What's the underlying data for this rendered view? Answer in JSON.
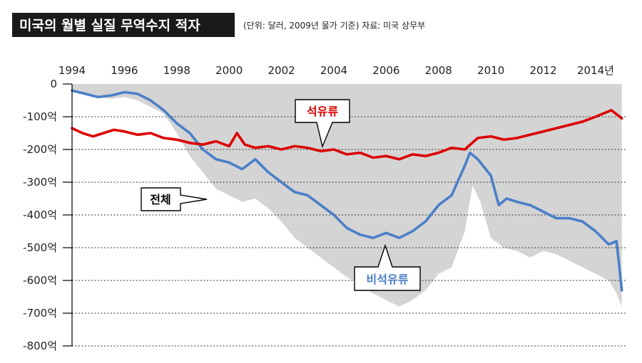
{
  "header": {
    "title": "미국의 월별 실질 무역수지 적자",
    "subtitle": "(단위: 달러, 2009년 물가 기준) 자료: 미국 상무부"
  },
  "chart_data": {
    "type": "line",
    "xlim": [
      1994,
      2015.2
    ],
    "ylim": [
      -800,
      0
    ],
    "x_ticks": [
      1994,
      1996,
      1998,
      2000,
      2002,
      2004,
      2006,
      2008,
      2010,
      2012,
      2014
    ],
    "x_tick_labels": [
      "1994",
      "1996",
      "1998",
      "2000",
      "2002",
      "2004",
      "2006",
      "2008",
      "2010",
      "2012",
      "2014년"
    ],
    "y_ticks": [
      0,
      -100,
      -200,
      -300,
      -400,
      -500,
      -600,
      -700,
      -800
    ],
    "y_tick_labels": [
      "0",
      "-100억",
      "-200억",
      "-300억",
      "-400억",
      "-500억",
      "-600억",
      "-700억",
      "-800억"
    ],
    "grid": "horizontal dashed",
    "series": [
      {
        "name": "전체",
        "style": "area",
        "color": "#d4d4d4",
        "x": [
          1994,
          1994.5,
          1995,
          1995.5,
          1996,
          1996.5,
          1997,
          1997.5,
          1998,
          1998.5,
          1999,
          1999.5,
          2000,
          2000.5,
          2001,
          2001.5,
          2002,
          2002.5,
          2003,
          2003.5,
          2004,
          2004.5,
          2005,
          2005.5,
          2006,
          2006.5,
          2007,
          2007.5,
          2008,
          2008.5,
          2009,
          2009.3,
          2009.6,
          2010,
          2010.5,
          2011,
          2011.5,
          2012,
          2012.5,
          2013,
          2013.5,
          2014,
          2014.5,
          2014.8,
          2015
        ],
        "values": [
          -20,
          -30,
          -40,
          -45,
          -40,
          -50,
          -70,
          -90,
          -150,
          -220,
          -270,
          -320,
          -340,
          -360,
          -350,
          -380,
          -420,
          -470,
          -500,
          -530,
          -560,
          -590,
          -610,
          -640,
          -660,
          -680,
          -660,
          -630,
          -580,
          -560,
          -450,
          -310,
          -360,
          -470,
          -500,
          -510,
          -530,
          -510,
          -520,
          -540,
          -560,
          -580,
          -600,
          -640,
          -680
        ]
      },
      {
        "name": "석유류",
        "color": "#dc0000",
        "x": [
          1994,
          1994.4,
          1994.8,
          1995.2,
          1995.6,
          1996,
          1996.5,
          1997,
          1997.5,
          1998,
          1998.5,
          1999,
          1999.5,
          2000,
          2000.3,
          2000.6,
          2001,
          2001.5,
          2002,
          2002.5,
          2003,
          2003.5,
          2004,
          2004.5,
          2005,
          2005.5,
          2006,
          2006.5,
          2007,
          2007.5,
          2008,
          2008.5,
          2009,
          2009.5,
          2010,
          2010.5,
          2011,
          2011.5,
          2012,
          2012.5,
          2013,
          2013.5,
          2014,
          2014.3,
          2014.6,
          2015
        ],
        "values": [
          -135,
          -150,
          -160,
          -150,
          -140,
          -145,
          -155,
          -150,
          -165,
          -170,
          -180,
          -185,
          -175,
          -190,
          -150,
          -185,
          -195,
          -190,
          -200,
          -190,
          -195,
          -205,
          -200,
          -215,
          -210,
          -225,
          -220,
          -230,
          -215,
          -220,
          -210,
          -195,
          -200,
          -165,
          -160,
          -170,
          -165,
          -155,
          -145,
          -135,
          -125,
          -115,
          -100,
          -90,
          -80,
          -105
        ]
      },
      {
        "name": "비석유류",
        "color": "#4a7fc8",
        "x": [
          1994,
          1994.5,
          1995,
          1995.5,
          1996,
          1996.5,
          1997,
          1997.5,
          1998,
          1998.5,
          1999,
          1999.5,
          2000,
          2000.5,
          2001,
          2001.5,
          2002,
          2002.5,
          2003,
          2003.5,
          2004,
          2004.5,
          2005,
          2005.5,
          2006,
          2006.5,
          2007,
          2007.5,
          2008,
          2008.5,
          2009,
          2009.2,
          2009.5,
          2010,
          2010.3,
          2010.6,
          2011,
          2011.5,
          2012,
          2012.5,
          2013,
          2013.5,
          2014,
          2014.5,
          2014.8,
          2015
        ],
        "values": [
          -20,
          -30,
          -40,
          -35,
          -25,
          -30,
          -50,
          -80,
          -120,
          -150,
          -200,
          -230,
          -240,
          -260,
          -230,
          -270,
          -300,
          -330,
          -340,
          -370,
          -400,
          -440,
          -460,
          -470,
          -455,
          -470,
          -450,
          -420,
          -370,
          -340,
          -250,
          -210,
          -230,
          -280,
          -370,
          -350,
          -360,
          -370,
          -390,
          -410,
          -410,
          -420,
          -450,
          -490,
          -480,
          -630
        ]
      }
    ],
    "annotations": [
      {
        "text": "석유류",
        "target_series": "석유류",
        "color": "#dc0000"
      },
      {
        "text": "전체",
        "target_series": "전체",
        "color": "#000000"
      },
      {
        "text": "비석유류",
        "target_series": "비석유류",
        "color": "#4a7fc8"
      }
    ]
  }
}
